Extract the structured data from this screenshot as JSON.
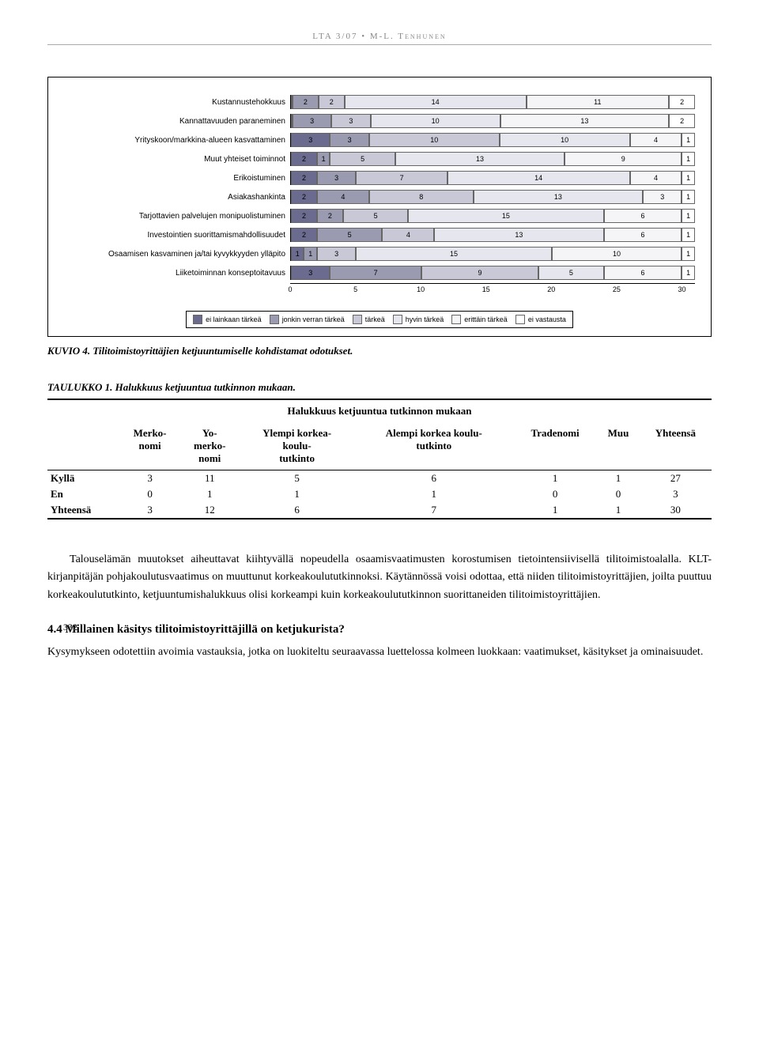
{
  "header": "LTA 3/07 • M-L. Tenhunen",
  "chart": {
    "type": "stacked-bar-horizontal",
    "xmax": 31,
    "xticks": [
      0,
      5,
      10,
      15,
      20,
      25,
      30
    ],
    "categories": [
      {
        "label": "Kustannustehokkuus",
        "values": [
          0,
          2,
          2,
          14,
          11,
          2
        ]
      },
      {
        "label": "Kannattavuuden paraneminen",
        "values": [
          0,
          3,
          3,
          10,
          13,
          2
        ]
      },
      {
        "label": "Yrityskoon/markkina-alueen kasvattaminen",
        "values": [
          3,
          3,
          10,
          10,
          4,
          1
        ]
      },
      {
        "label": "Muut yhteiset toiminnot",
        "values": [
          2,
          1,
          5,
          13,
          9,
          1
        ]
      },
      {
        "label": "Erikoistuminen",
        "values": [
          2,
          3,
          7,
          14,
          4,
          1
        ]
      },
      {
        "label": "Asiakashankinta",
        "values": [
          2,
          4,
          8,
          13,
          3,
          1
        ]
      },
      {
        "label": "Tarjottavien palvelujen monipuolistuminen",
        "values": [
          2,
          2,
          5,
          15,
          6,
          1
        ]
      },
      {
        "label": "Investointien suorittamismahdollisuudet",
        "values": [
          2,
          5,
          4,
          13,
          6,
          1
        ]
      },
      {
        "label": "Osaamisen kasvaminen ja/tai kyvykkyyden ylläpito",
        "values": [
          1,
          1,
          3,
          15,
          10,
          1
        ]
      },
      {
        "label": "Liiketoiminnan konseptoitavuus",
        "values": [
          3,
          7,
          9,
          5,
          6,
          1
        ]
      }
    ],
    "series_colors": [
      "#6b6b8f",
      "#9a9ab0",
      "#c8c8d6",
      "#e6e6ee",
      "#f5f5f8",
      "#ffffff"
    ],
    "legend": [
      "ei lainkaan tärkeä",
      "jonkin verran tärkeä",
      "tärkeä",
      "hyvin tärkeä",
      "erittäin tärkeä",
      "ei vastausta"
    ]
  },
  "caption4": "KUVIO 4. Tilitoimistoyrittäjien ketjuuntumiselle kohdistamat odotukset.",
  "table_caption": "TAULUKKO 1. Halukkuus ketjuuntua tutkinnon mukaan.",
  "table": {
    "title": "Halukkuus ketjuuntua tutkinnon mukaan",
    "columns": [
      "",
      "Merko-nomi",
      "Yo-merko-nomi",
      "Ylempi korkea-koulu-tutkinto",
      "Alempi korkea koulu-tutkinto",
      "Tradenomi",
      "Muu",
      "Yhteensä"
    ],
    "rows": [
      [
        "Kyllä",
        "3",
        "11",
        "5",
        "6",
        "1",
        "1",
        "27"
      ],
      [
        "En",
        "0",
        "1",
        "1",
        "1",
        "0",
        "0",
        "3"
      ],
      [
        "Yhteensä",
        "3",
        "12",
        "6",
        "7",
        "1",
        "1",
        "30"
      ]
    ]
  },
  "para1": "Talouselämän muutokset aiheuttavat kiihtyvällä nopeudella osaamisvaatimusten korostumisen tietointensiivisellä tilitoimistoalalla. KLT-kirjanpitäjän pohjakoulutusvaatimus on muuttunut korkeakoulututkinnoksi. Käytännössä voisi odottaa, että niiden tilitoimistoyrittäjien, joilta puuttuu korkeakoulututkinto, ketjuuntumishalukkuus olisi korkeampi kuin korkeakoulututkinnon suorittaneiden tilitoimistoyrittäjien.",
  "subhead": "4.4 Millainen käsitys tilitoimistoyrittäjillä on ketjukurista?",
  "para2": "Kysymykseen odotettiin avoimia vastauksia, jotka on luokiteltu seuraavassa luettelossa kolmeen luokkaan: vaatimukset, käsitykset ja ominaisuudet.",
  "page_number": "332"
}
